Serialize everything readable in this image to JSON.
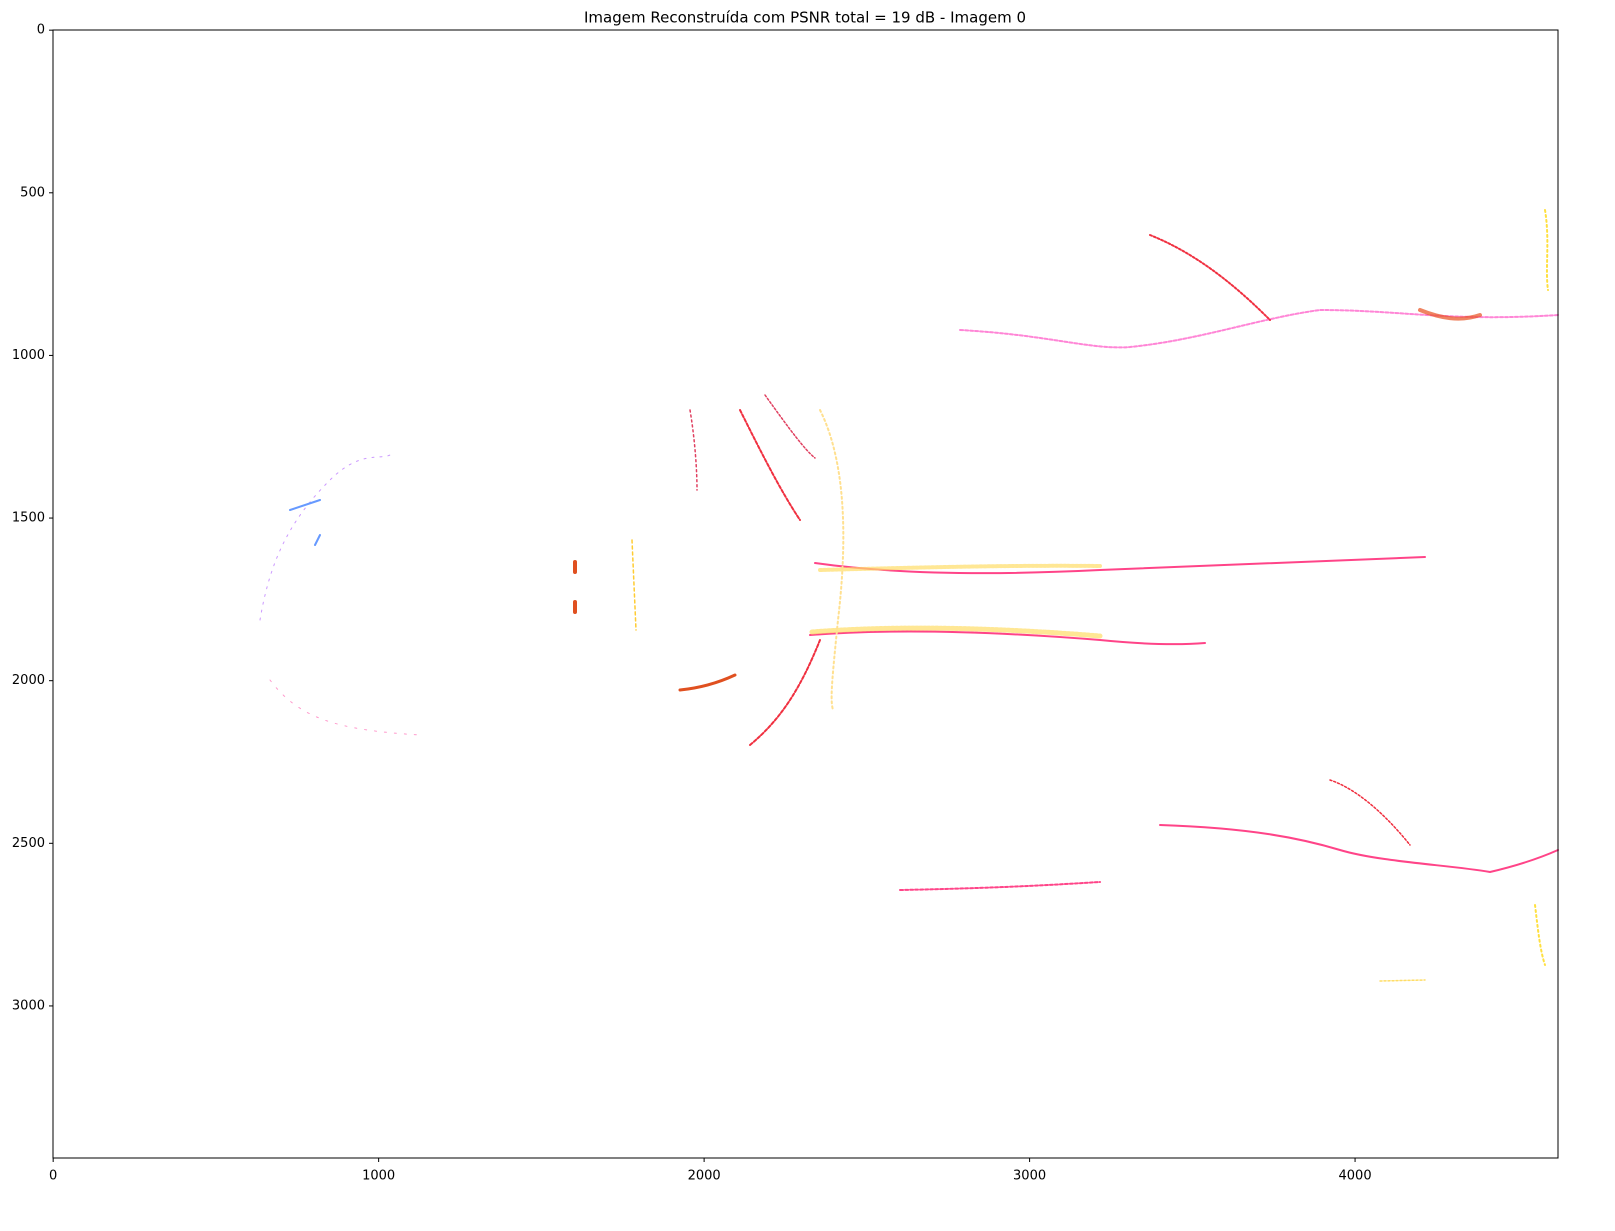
{
  "chart_data": {
    "type": "image",
    "title": "Imagem Reconstruída com PSNR total = 19 dB - Imagem 0",
    "xlim": [
      -0.5,
      4623.5
    ],
    "ylim": [
      3467.5,
      -0.5
    ],
    "xticks": [
      0,
      1000,
      2000,
      3000,
      4000
    ],
    "yticks": [
      0,
      500,
      1000,
      1500,
      2000,
      2500,
      3000
    ]
  }
}
